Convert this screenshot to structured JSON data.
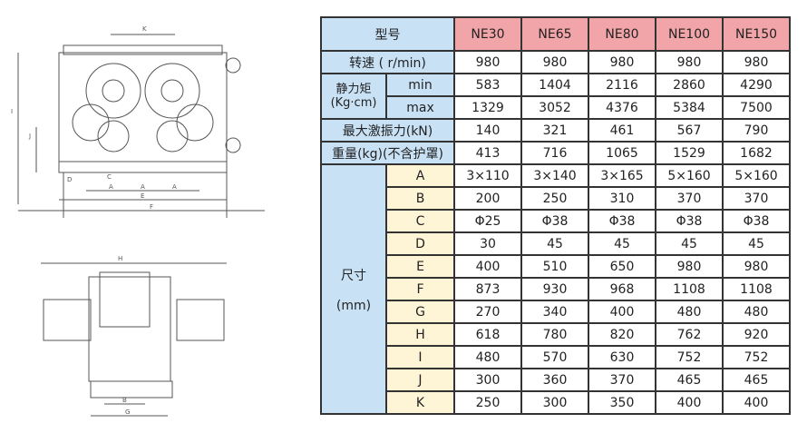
{
  "drawing": {
    "labels": {
      "K": "K",
      "I": "I",
      "J": "J",
      "D": "D",
      "C": "C",
      "A": "A",
      "E": "E",
      "F": "F",
      "H": "H",
      "B": "B",
      "G": "G"
    }
  },
  "table": {
    "model_label": "型号",
    "models": [
      "NE30",
      "NE65",
      "NE80",
      "NE100",
      "NE150"
    ],
    "speed": {
      "label": "转速 ( r/min)",
      "values": [
        "980",
        "980",
        "980",
        "980",
        "980"
      ]
    },
    "moment": {
      "label": "静力矩",
      "unit": "(Kg·cm)",
      "min": {
        "label": "min",
        "values": [
          "583",
          "1404",
          "2116",
          "2860",
          "4290"
        ]
      },
      "max": {
        "label": "max",
        "values": [
          "1329",
          "3052",
          "4376",
          "5384",
          "7500"
        ]
      }
    },
    "force": {
      "label": "最大激振力(kN)",
      "values": [
        "140",
        "321",
        "461",
        "567",
        "790"
      ]
    },
    "weight": {
      "label": "重量(kg)(不含护罩)",
      "values": [
        "413",
        "716",
        "1065",
        "1529",
        "1682"
      ]
    },
    "dims": {
      "label": "尺寸",
      "unit": "(mm)",
      "rows": [
        {
          "k": "A",
          "v": [
            "3×110",
            "3×140",
            "3×165",
            "5×160",
            "5×160"
          ]
        },
        {
          "k": "B",
          "v": [
            "200",
            "250",
            "310",
            "370",
            "370"
          ]
        },
        {
          "k": "C",
          "v": [
            "Φ25",
            "Φ38",
            "Φ38",
            "Φ38",
            "Φ38"
          ]
        },
        {
          "k": "D",
          "v": [
            "30",
            "45",
            "45",
            "45",
            "45"
          ]
        },
        {
          "k": "E",
          "v": [
            "400",
            "510",
            "650",
            "980",
            "980"
          ]
        },
        {
          "k": "F",
          "v": [
            "873",
            "930",
            "968",
            "1108",
            "1108"
          ]
        },
        {
          "k": "G",
          "v": [
            "270",
            "340",
            "400",
            "480",
            "480"
          ]
        },
        {
          "k": "H",
          "v": [
            "618",
            "780",
            "820",
            "762",
            "920"
          ]
        },
        {
          "k": "I",
          "v": [
            "480",
            "570",
            "630",
            "752",
            "752"
          ]
        },
        {
          "k": "J",
          "v": [
            "300",
            "360",
            "370",
            "465",
            "465"
          ]
        },
        {
          "k": "K",
          "v": [
            "250",
            "300",
            "350",
            "400",
            "400"
          ]
        }
      ]
    }
  }
}
